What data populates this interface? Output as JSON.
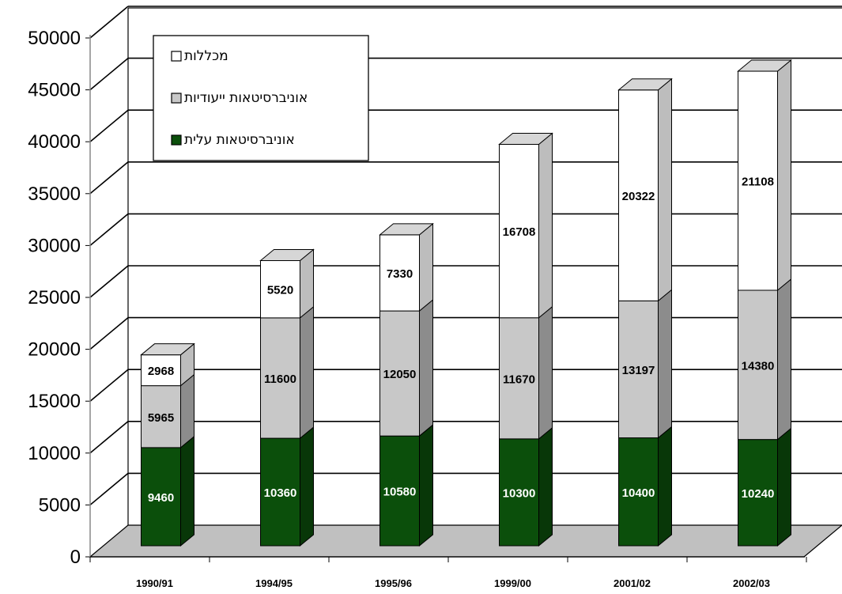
{
  "chart_data": {
    "type": "bar",
    "stacked": true,
    "three_d": true,
    "categories": [
      "1990/91",
      "1994/95",
      "1995/96",
      "1999/00",
      "2001/02",
      "2002/03"
    ],
    "series": [
      {
        "name": "אוניברסיטאות עלית",
        "values": [
          9460,
          10360,
          10580,
          10300,
          10400,
          10240
        ],
        "color": "#0b4f0b",
        "label_color": "#ffffff"
      },
      {
        "name": "אוניברסיטאות ייעודיות",
        "values": [
          5965,
          11600,
          12050,
          11670,
          13197,
          14380
        ],
        "color": "#c8c8c8",
        "label_color": "#000000"
      },
      {
        "name": "מכללות",
        "values": [
          2968,
          5520,
          7330,
          16708,
          20322,
          21108
        ],
        "color": "#ffffff",
        "label_color": "#000000"
      }
    ],
    "yticks": [
      "0",
      "5000",
      "10000",
      "15000",
      "20000",
      "25000",
      "30000",
      "35000",
      "40000",
      "45000",
      "50000"
    ],
    "ylim": [
      0,
      50000
    ],
    "grid": true,
    "legend_position": "top-left"
  }
}
